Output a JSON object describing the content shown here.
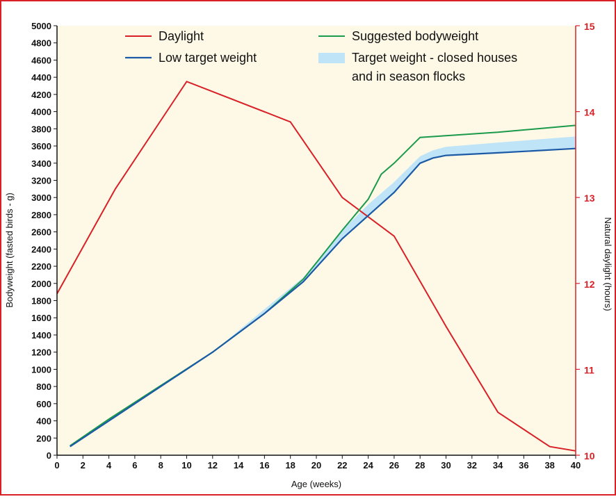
{
  "chart_data": {
    "type": "line",
    "title": "",
    "xlabel": "Age (weeks)",
    "ylabel": "Bodyweight (fasted birds - g)",
    "y2label": "Natural daylight (hours)",
    "xlim": [
      0,
      40
    ],
    "ylim": [
      0,
      5000
    ],
    "y2lim": [
      10,
      15
    ],
    "x_ticks": [
      0,
      2,
      4,
      6,
      8,
      10,
      12,
      14,
      16,
      18,
      20,
      22,
      24,
      26,
      28,
      30,
      32,
      34,
      36,
      38,
      40
    ],
    "y_ticks": [
      0,
      200,
      400,
      600,
      800,
      1000,
      1200,
      1400,
      1600,
      1800,
      2000,
      2200,
      2400,
      2600,
      2800,
      3000,
      3200,
      3400,
      3600,
      3800,
      4000,
      4200,
      4400,
      4600,
      4800,
      5000
    ],
    "y2_ticks": [
      10,
      11,
      12,
      13,
      14,
      15
    ],
    "grid": false,
    "legend_position": "top",
    "colors": {
      "background": "#fdf9e6",
      "border": "#d92027",
      "daylight": "#d92027",
      "suggested": "#1a9a4a",
      "low_target": "#1c5aa6",
      "band": "#bfe3f7",
      "right_axis": "#d92027"
    },
    "series": [
      {
        "name": "Daylight",
        "axis": "right",
        "x": [
          0,
          4.5,
          10,
          18,
          22,
          26,
          30,
          34,
          38,
          40
        ],
        "y": [
          11.88,
          13.1,
          14.35,
          13.88,
          13.0,
          12.55,
          11.5,
          10.5,
          10.1,
          10.05
        ]
      },
      {
        "name": "Suggested bodyweight",
        "axis": "left",
        "x": [
          1,
          4,
          8,
          12,
          16,
          19,
          22,
          24,
          25,
          26,
          28,
          30,
          34,
          40
        ],
        "y": [
          110,
          420,
          810,
          1200,
          1650,
          2050,
          2620,
          2980,
          3270,
          3400,
          3700,
          3720,
          3760,
          3840
        ]
      },
      {
        "name": "Low target weight",
        "axis": "left",
        "x": [
          1,
          4,
          8,
          12,
          16,
          19,
          22,
          26,
          28,
          29,
          30,
          34,
          40
        ],
        "y": [
          100,
          400,
          800,
          1200,
          1650,
          2020,
          2520,
          3060,
          3400,
          3460,
          3490,
          3520,
          3570
        ]
      },
      {
        "name": "Target weight - closed houses and in season flocks",
        "type": "band",
        "axis": "left",
        "x": [
          12,
          16,
          19,
          22,
          24,
          26,
          28,
          29,
          30,
          34,
          40
        ],
        "low": [
          1200,
          1650,
          2020,
          2520,
          2800,
          3060,
          3400,
          3460,
          3490,
          3520,
          3570
        ],
        "high": [
          1200,
          1700,
          2070,
          2620,
          2920,
          3180,
          3480,
          3550,
          3590,
          3640,
          3710
        ]
      }
    ],
    "legend": [
      {
        "key": "daylight",
        "label": "Daylight",
        "kind": "line"
      },
      {
        "key": "low",
        "label": "Low target weight",
        "kind": "line"
      },
      {
        "key": "suggested",
        "label": "Suggested bodyweight",
        "kind": "line"
      },
      {
        "key": "band",
        "label": "Target weight - closed houses",
        "label2": "and in season flocks",
        "kind": "band"
      }
    ]
  }
}
